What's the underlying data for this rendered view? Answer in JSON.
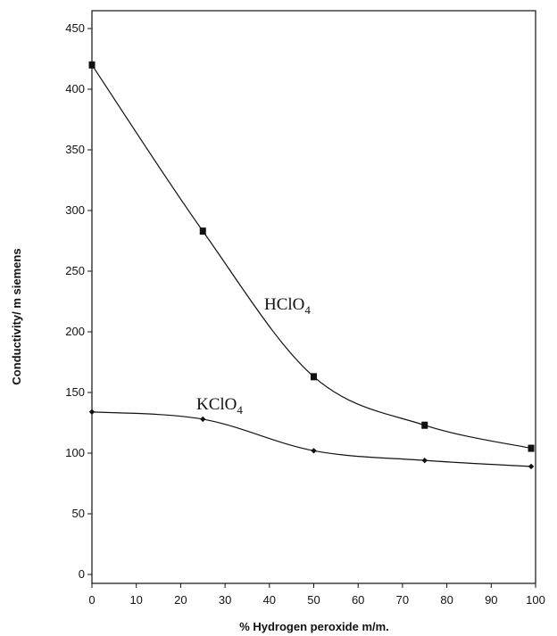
{
  "chart_data": {
    "type": "line",
    "xlabel": "% Hydrogen peroxide m/m.",
    "ylabel": "Conductivity/ m siemens",
    "xlim": [
      0,
      100
    ],
    "ylim": [
      0,
      450
    ],
    "xticks": [
      0,
      10,
      20,
      30,
      40,
      50,
      60,
      70,
      80,
      90,
      100
    ],
    "yticks": [
      0,
      50,
      100,
      150,
      200,
      250,
      300,
      350,
      400,
      450
    ],
    "grid": false,
    "series": [
      {
        "name": "HClO4",
        "label_main": "HClO",
        "label_sub": "4",
        "marker": "square",
        "x": [
          0,
          25,
          50,
          75,
          99
        ],
        "y": [
          420,
          283,
          163,
          123,
          104
        ]
      },
      {
        "name": "KClO4",
        "label_main": "KClO",
        "label_sub": "4",
        "marker": "diamond",
        "x": [
          0,
          25,
          50,
          75,
          99
        ],
        "y": [
          134,
          128,
          102,
          94,
          89
        ]
      }
    ]
  }
}
